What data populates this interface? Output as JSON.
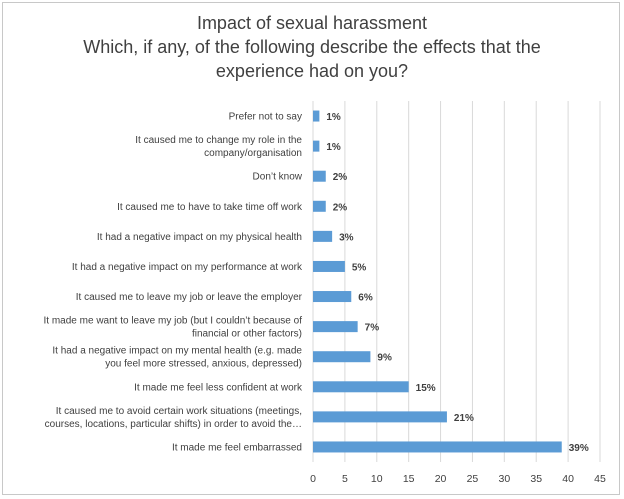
{
  "chart_data": {
    "type": "bar",
    "orientation": "horizontal",
    "title_lines": [
      "Impact of sexual harassment",
      "Which, if any, of the following describe the effects that the",
      "experience had on you?"
    ],
    "categories": [
      [
        "Prefer not to say"
      ],
      [
        "It caused me to change my role in the",
        "company/organisation"
      ],
      [
        "Don’t know"
      ],
      [
        "It caused me to have to take time off work"
      ],
      [
        "It had a negative impact on my physical health"
      ],
      [
        "It had a negative impact on my performance at work"
      ],
      [
        "It caused me to leave my job or leave the employer"
      ],
      [
        "It made me want to leave my job (but I couldn’t because of",
        "financial or other factors)"
      ],
      [
        "It had a negative impact on my mental health (e.g. made",
        "you feel more stressed, anxious, depressed)"
      ],
      [
        "It made me feel less confident at work"
      ],
      [
        "It caused me to avoid certain work situations (meetings,",
        "courses, locations, particular shifts) in order to avoid the…"
      ],
      [
        "It made me feel embarrassed"
      ]
    ],
    "values": [
      1,
      1,
      2,
      2,
      3,
      5,
      6,
      7,
      9,
      15,
      21,
      39
    ],
    "data_labels": [
      "1%",
      "1%",
      "2%",
      "2%",
      "3%",
      "5%",
      "6%",
      "7%",
      "9%",
      "15%",
      "21%",
      "39%"
    ],
    "xlim": [
      0,
      45
    ],
    "xticks": [
      0,
      5,
      10,
      15,
      20,
      25,
      30,
      35,
      40,
      45
    ],
    "grid": true,
    "legend": "none",
    "bar_color": "#5b9bd5",
    "grid_color": "#d9d9d9"
  }
}
